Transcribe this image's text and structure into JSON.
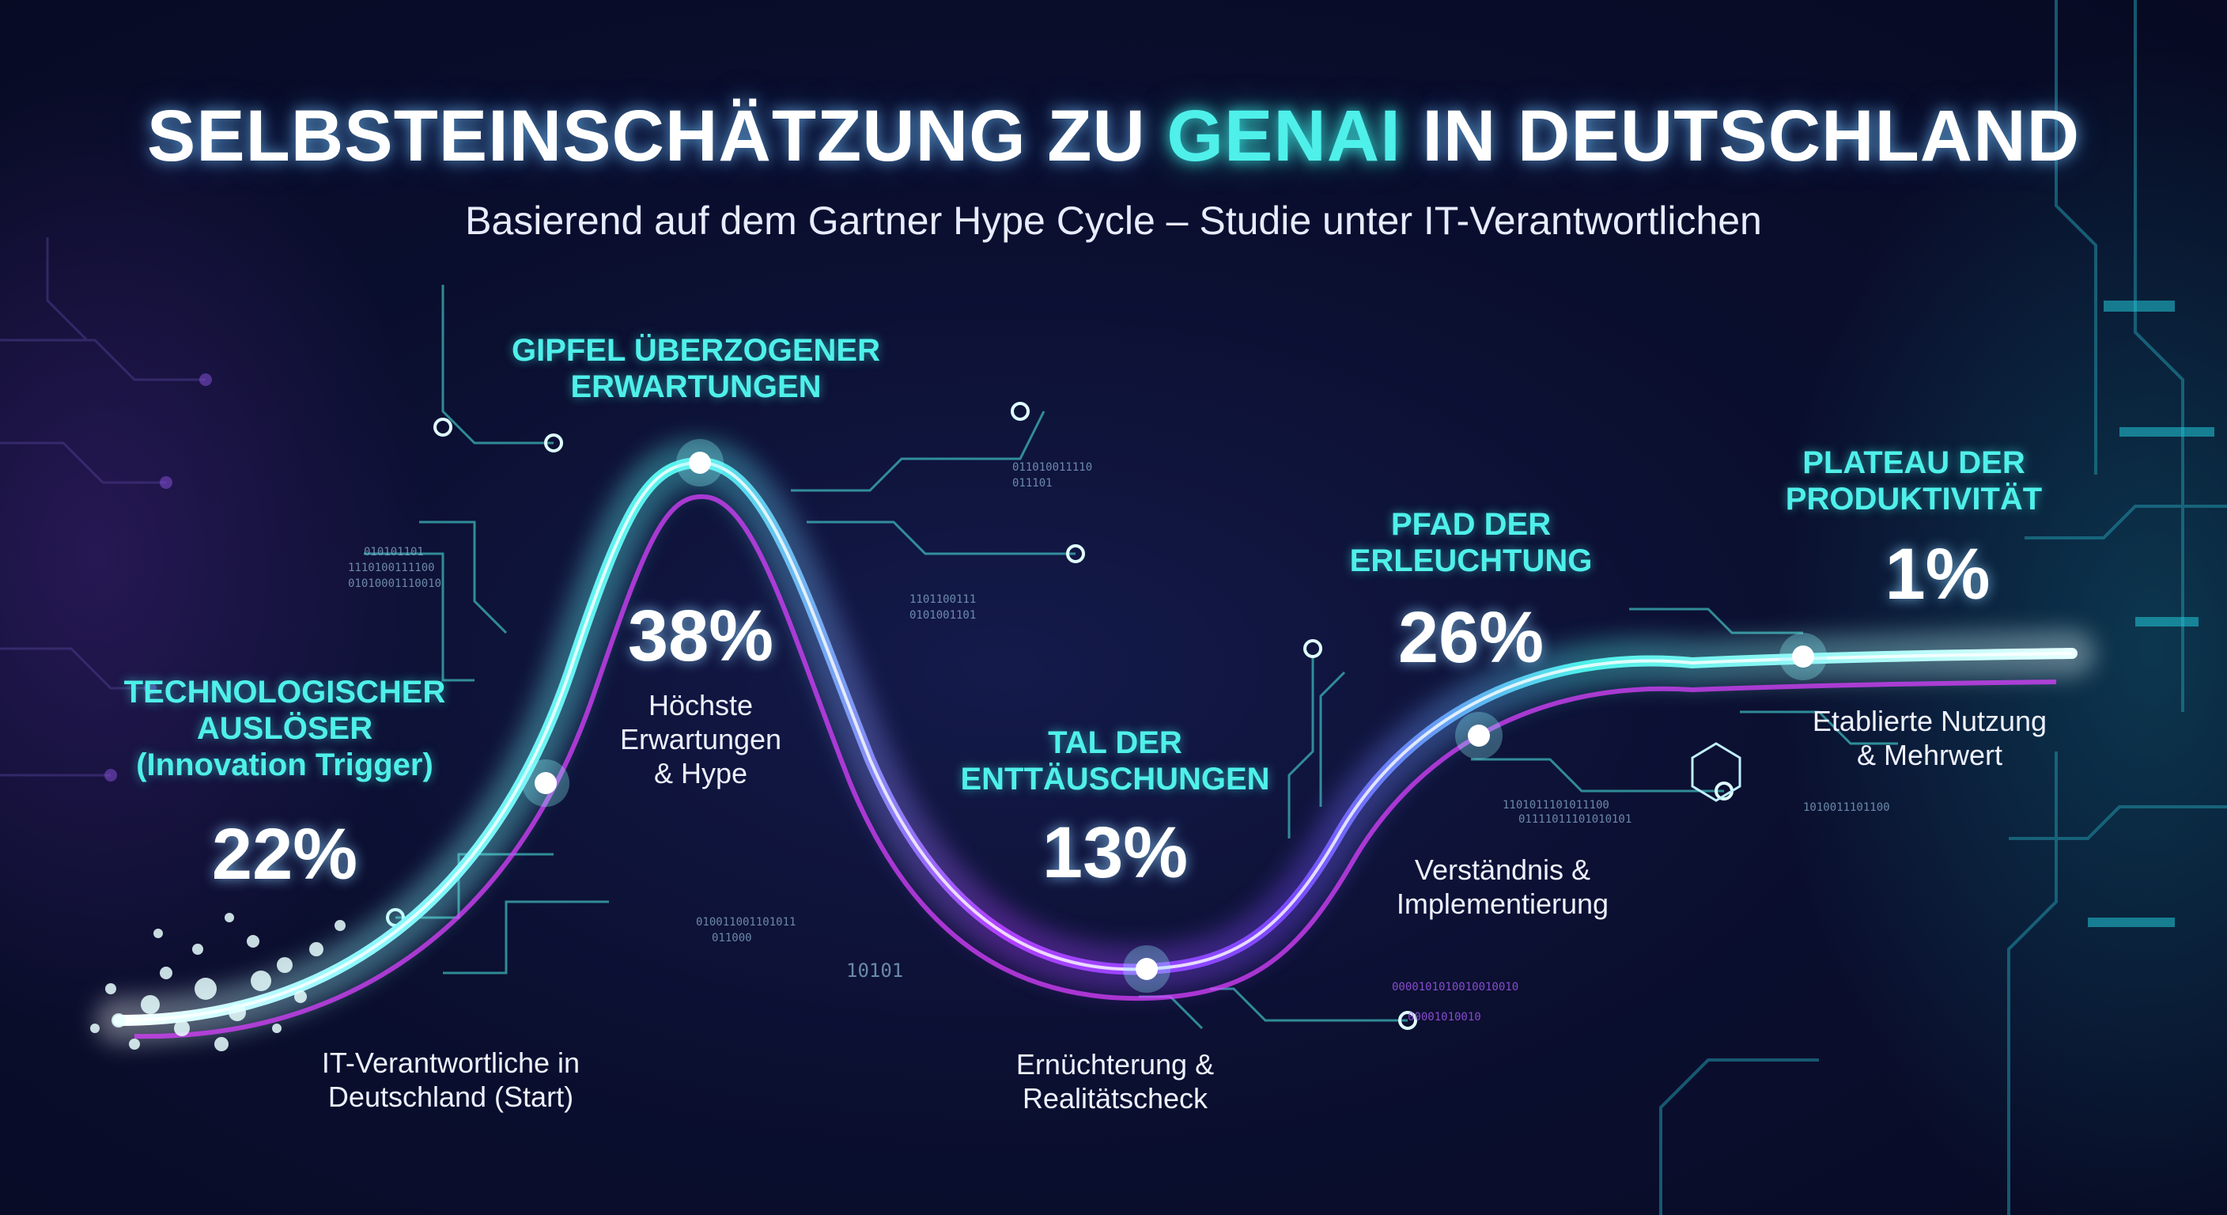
{
  "title": {
    "prefix": "SELBSTEINSCHÄTZUNG ZU ",
    "highlight": "GENAI",
    "suffix": " IN DEUTSCHLAND"
  },
  "subtitle": "Basierend auf dem Gartner Hype Cycle – Studie unter IT-Verantwortlichen",
  "colors": {
    "accent_cyan": "#4ff0ea",
    "accent_magenta": "#d940ff",
    "background": "#0b0f30",
    "text": "#ffffff"
  },
  "decor_binary": [
    "010101101",
    "1110100111100",
    "01010001110010",
    "011010011110",
    "011101",
    "1101100111",
    "0101001101",
    "010011001101011",
    "011000",
    "10101",
    "1101011101011100",
    "01111011101010101",
    "1010011101100",
    "0000101010010010010",
    "00001010010"
  ],
  "chart_data": {
    "type": "line",
    "title": "SELBSTEINSCHÄTZUNG ZU GENAI IN DEUTSCHLAND",
    "subtitle": "Basierend auf dem Gartner Hype Cycle – Studie unter IT-Verantwortlichen",
    "xlabel": "",
    "ylabel": "",
    "grid": false,
    "legend": "none",
    "categories": [
      "TECHNOLOGISCHER AUSLÖSER (Innovation Trigger)",
      "GIPFEL ÜBERZOGENER ERWARTUNGEN",
      "TAL DER ENTTÄUSCHUNGEN",
      "PFAD DER ERLEUCHTUNG",
      "PLATEAU DER PRODUKTIVITÄT"
    ],
    "values": [
      22,
      38,
      13,
      26,
      1
    ],
    "unit": "%",
    "phases": [
      {
        "label_lines": [
          "TECHNOLOGISCHER",
          "AUSLÖSER",
          "(Innovation Trigger)"
        ],
        "value": 22,
        "value_label": "22%",
        "desc_lines": [
          "IT-Verantwortliche in",
          "Deutschland (Start)"
        ]
      },
      {
        "label_lines": [
          "GIPFEL ÜBERZOGENER",
          "ERWARTUNGEN"
        ],
        "value": 38,
        "value_label": "38%",
        "desc_lines": [
          "Höchste",
          "Erwartungen",
          "& Hype"
        ]
      },
      {
        "label_lines": [
          "TAL DER",
          "ENTTÄUSCHUNGEN"
        ],
        "value": 13,
        "value_label": "13%",
        "desc_lines": [
          "Ernüchterung &",
          "Realitätscheck"
        ]
      },
      {
        "label_lines": [
          "PFAD DER",
          "ERLEUCHTUNG"
        ],
        "value": 26,
        "value_label": "26%",
        "desc_lines": [
          "Verständnis &",
          "Implementierung"
        ]
      },
      {
        "label_lines": [
          "PLATEAU DER",
          "PRODUKTIVITÄT"
        ],
        "value": 1,
        "value_label": "1%",
        "desc_lines": [
          "Etablierte Nutzung",
          "& Mehrwert"
        ]
      }
    ]
  }
}
